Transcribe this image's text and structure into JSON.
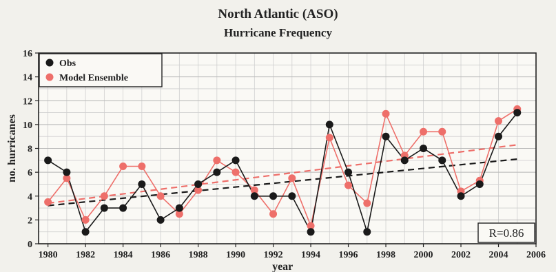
{
  "chart_data": {
    "type": "line",
    "title": "North Atlantic  (ASO)",
    "subtitle": "Hurricane Frequency",
    "xlabel": "year",
    "ylabel": "no. hurricanes",
    "xlim": [
      1979.5,
      2006
    ],
    "ylim": [
      0,
      16
    ],
    "x_ticks": [
      1980,
      1982,
      1984,
      1986,
      1988,
      1990,
      1992,
      1994,
      1996,
      1998,
      2000,
      2002,
      2004,
      2006
    ],
    "y_ticks": [
      0,
      2,
      4,
      6,
      8,
      10,
      12,
      14,
      16
    ],
    "grid": true,
    "legend_position": "top-left",
    "annotation": "R=0.86",
    "x": [
      1980,
      1981,
      1982,
      1983,
      1984,
      1985,
      1986,
      1987,
      1988,
      1989,
      1990,
      1991,
      1992,
      1993,
      1994,
      1995,
      1996,
      1997,
      1998,
      1999,
      2000,
      2001,
      2002,
      2003,
      2004,
      2005
    ],
    "series": [
      {
        "name": "Obs",
        "color": "#1a1a1a",
        "values": [
          7,
          6,
          1,
          3,
          3,
          5,
          2,
          3,
          5,
          6,
          7,
          4,
          4,
          4,
          1,
          10,
          6,
          1,
          9,
          7,
          8,
          7,
          4,
          5,
          9,
          11
        ],
        "trend": [
          3.2,
          7.1
        ]
      },
      {
        "name": "Model Ensemble",
        "color": "#ee6f6a",
        "values": [
          3.5,
          5.5,
          2,
          4,
          6.5,
          6.5,
          4,
          2.5,
          4.5,
          7,
          6,
          4.5,
          2.5,
          5.5,
          1.5,
          8.9,
          4.9,
          3.4,
          10.9,
          7.4,
          9.4,
          9.4,
          4.4,
          5.3,
          10.3,
          11.3
        ],
        "trend": [
          3.4,
          8.3
        ]
      }
    ]
  }
}
